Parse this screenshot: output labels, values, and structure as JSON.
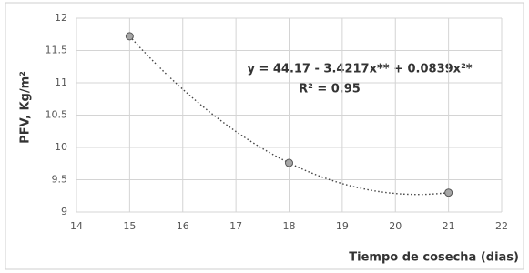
{
  "chart_data": {
    "type": "scatter",
    "x": [
      15,
      18,
      21
    ],
    "values": [
      11.72,
      9.76,
      9.3
    ],
    "color": "#a6a6a6",
    "xlim": [
      14,
      22
    ],
    "xticks": [
      14,
      15,
      16,
      17,
      18,
      19,
      20,
      21,
      22
    ],
    "ylim": [
      9,
      12
    ],
    "yticks": [
      9,
      9.5,
      10,
      10.5,
      11,
      11.5,
      12
    ],
    "grid": true,
    "ylabel": "PFV, Kg/m²",
    "xlabel": "Tiempo de cosecha (dias)",
    "annotations": [
      "y = 44.17 - 3.4217x** + 0.0839x²*",
      "R² = 0.95"
    ]
  }
}
